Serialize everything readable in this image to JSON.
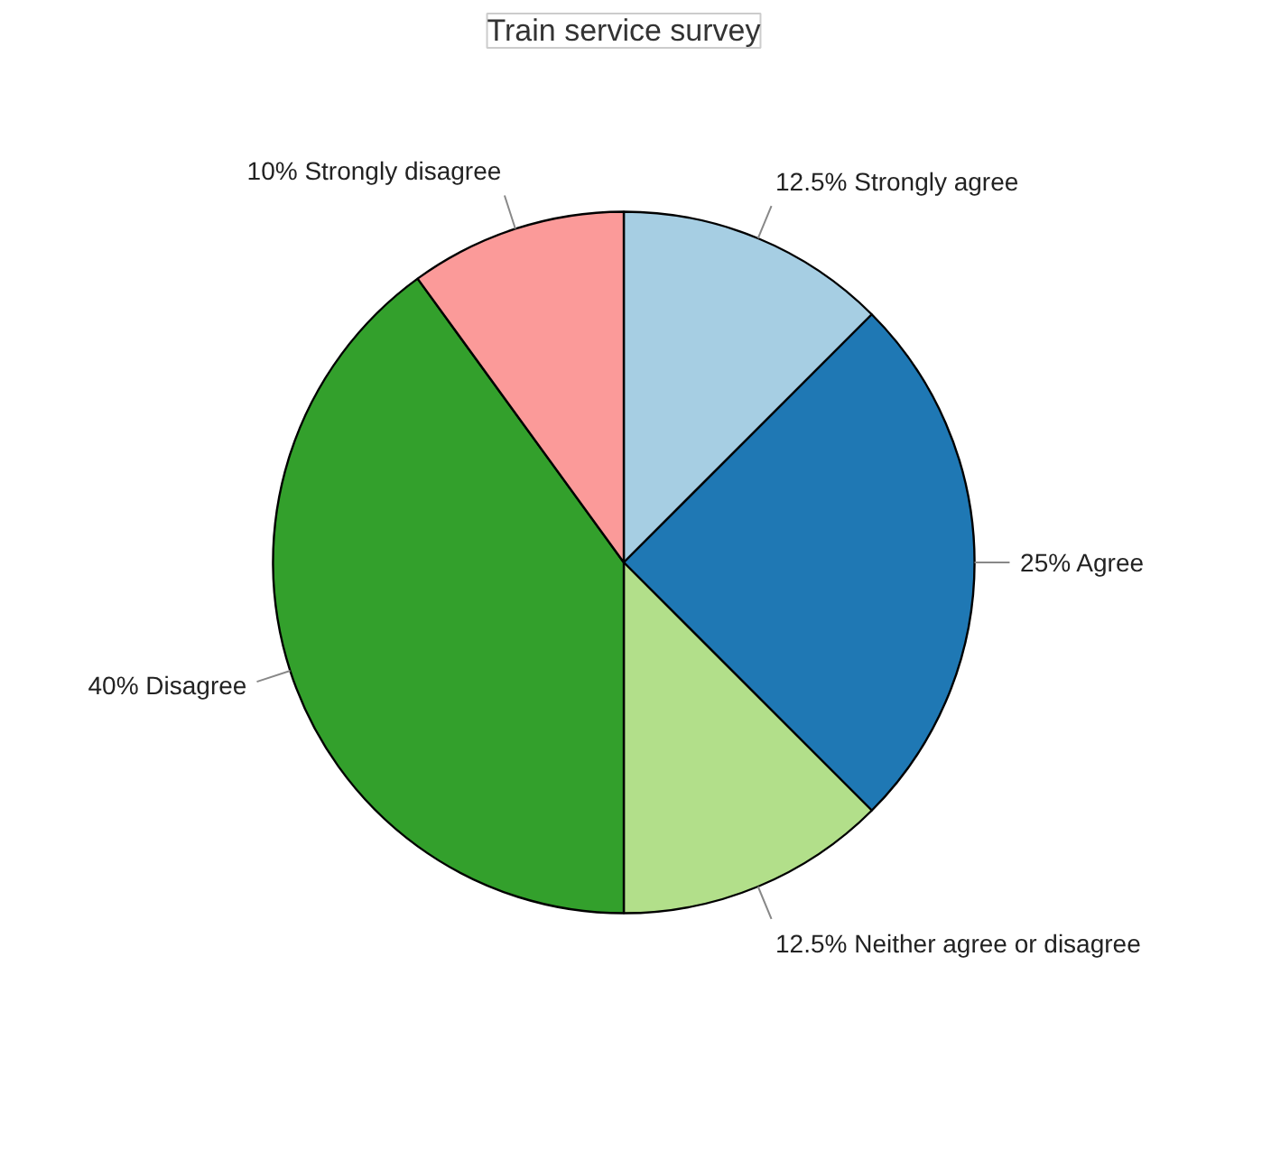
{
  "chart_data": {
    "type": "pie",
    "title": "Train service survey",
    "categories": [
      "Strongly agree",
      "Agree",
      "Neither agree or disagree",
      "Disagree",
      "Strongly disagree"
    ],
    "values": [
      12.5,
      25,
      12.5,
      40,
      10
    ],
    "value_labels": [
      "12.5%",
      "25%",
      "12.5%",
      "40%",
      "10%"
    ],
    "colors": [
      "#a6cee3",
      "#1f78b4",
      "#b2df8a",
      "#33a02c",
      "#fb9a99"
    ]
  }
}
